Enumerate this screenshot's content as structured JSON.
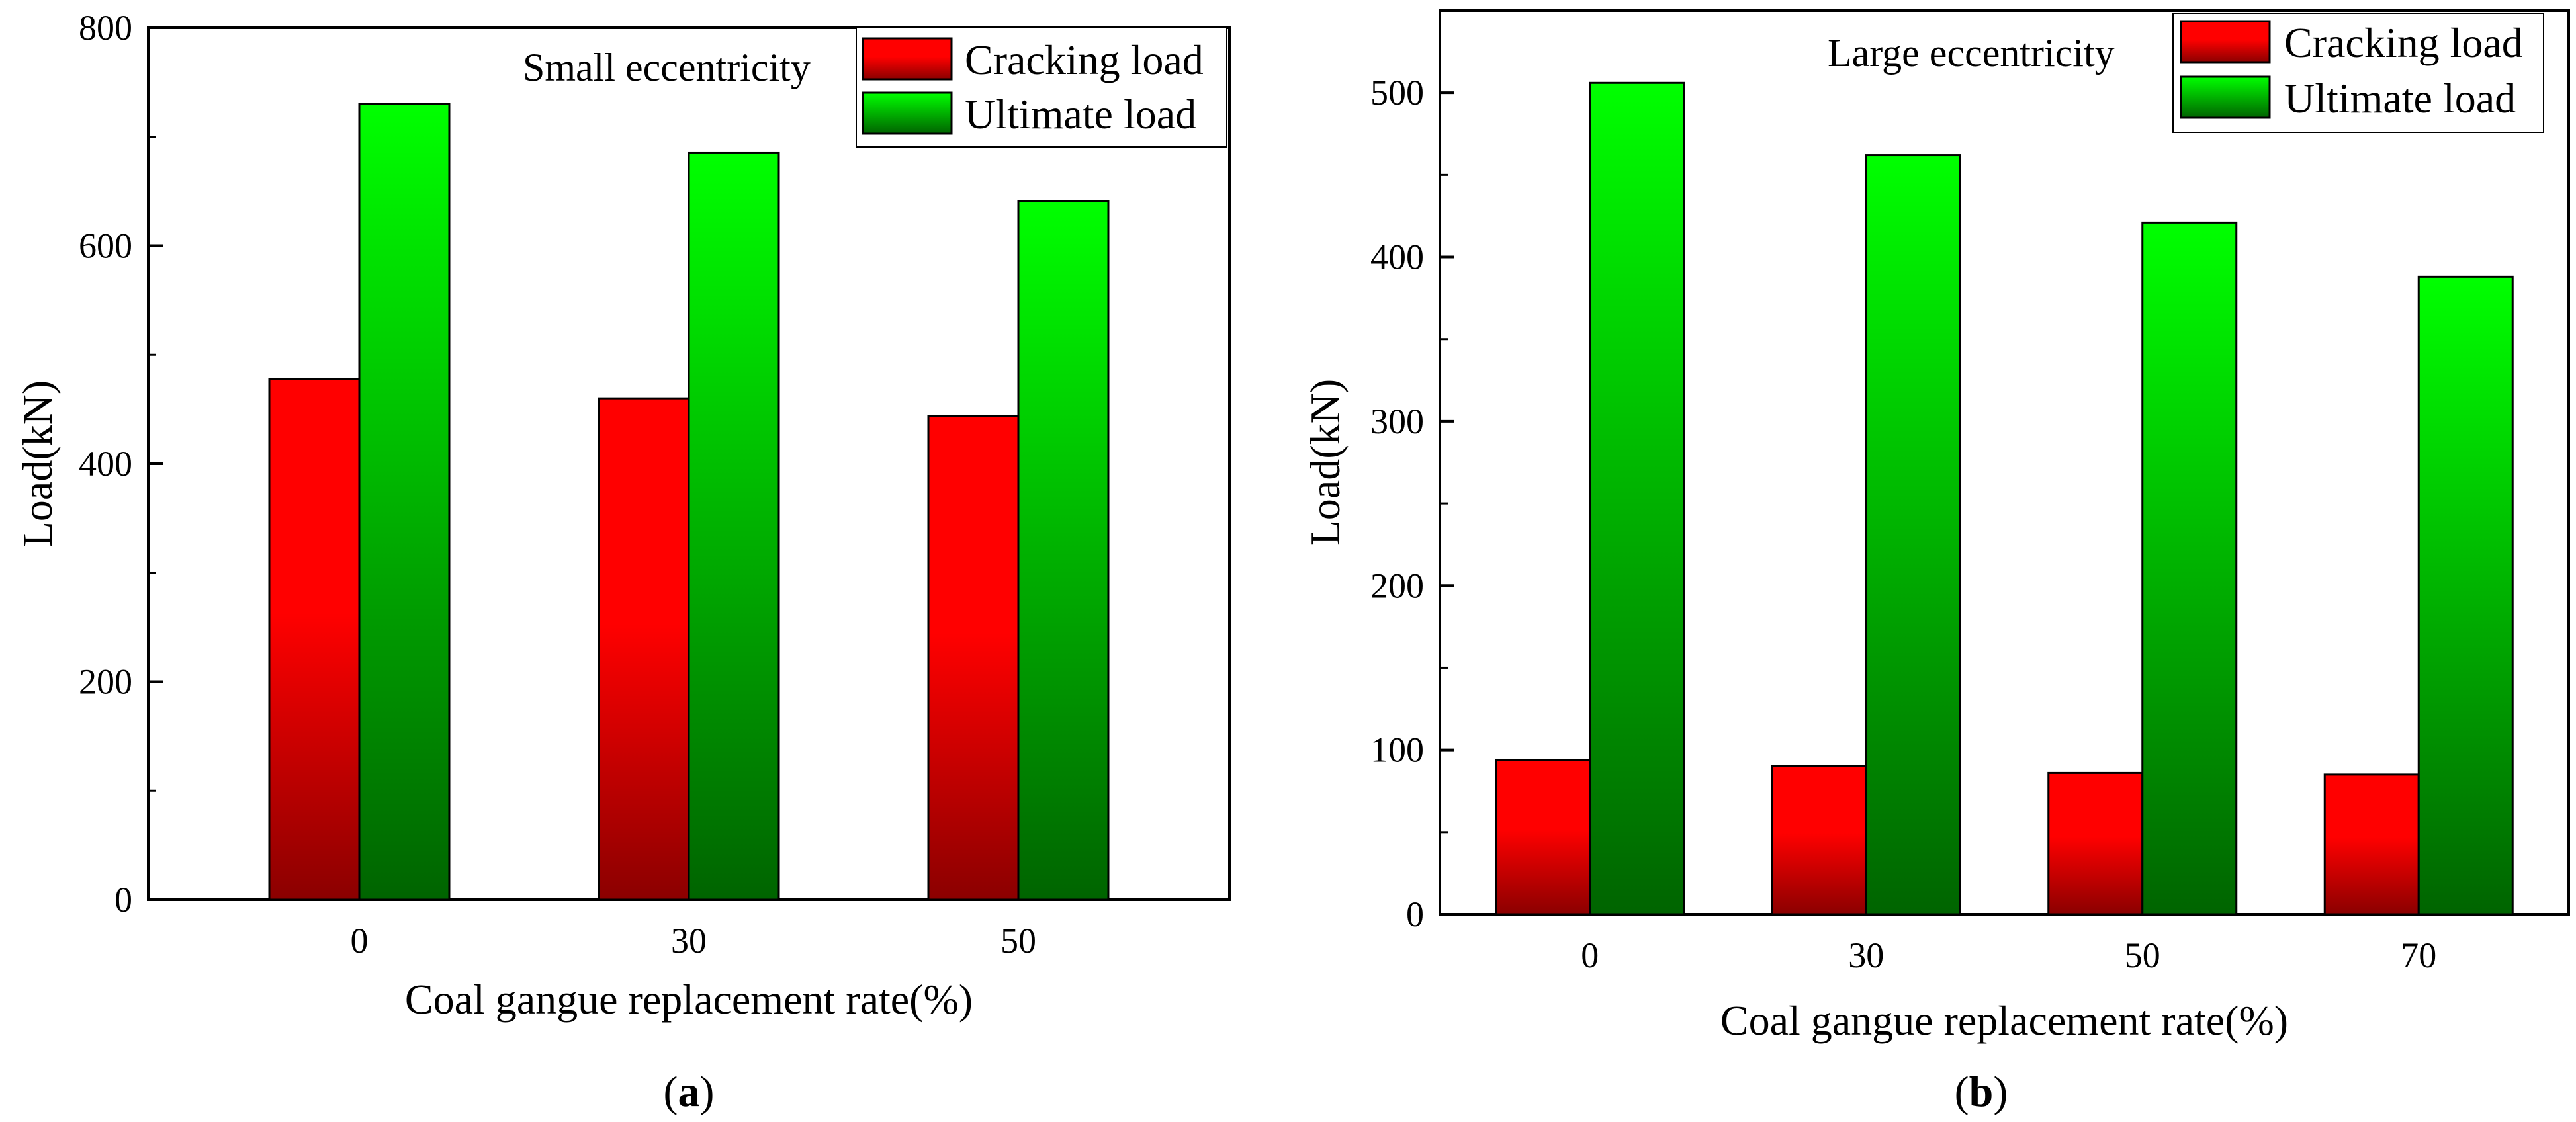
{
  "chart_data": [
    {
      "type": "bar",
      "panel_label": "a",
      "annotation": "Small eccentricity",
      "xlabel": "Coal gangue replacement rate(%)",
      "ylabel": "Load(kN)",
      "categories": [
        "0",
        "30",
        "50"
      ],
      "ylim": [
        0,
        800
      ],
      "yticks": [
        0,
        200,
        400,
        600,
        800
      ],
      "series": [
        {
          "name": "Cracking load",
          "values": [
            478,
            460,
            444
          ]
        },
        {
          "name": "Ultimate load",
          "values": [
            730,
            685,
            641
          ]
        }
      ],
      "legend_position": "top-right"
    },
    {
      "type": "bar",
      "panel_label": "b",
      "annotation": "Large eccentricity",
      "xlabel": "Coal gangue replacement rate(%)",
      "ylabel": "Load(kN)",
      "categories": [
        "0",
        "30",
        "50",
        "70"
      ],
      "ylim": [
        0,
        550
      ],
      "yticks": [
        0,
        100,
        200,
        300,
        400,
        500
      ],
      "series": [
        {
          "name": "Cracking load",
          "values": [
            94,
            90,
            86,
            85
          ]
        },
        {
          "name": "Ultimate load",
          "values": [
            506,
            462,
            421,
            388
          ]
        }
      ],
      "legend_position": "top-right"
    }
  ],
  "colors": {
    "cracking_top": "#ff0000",
    "cracking_bottom": "#8b0000",
    "ultimate_top": "#00ff00",
    "ultimate_bottom": "#006400"
  }
}
